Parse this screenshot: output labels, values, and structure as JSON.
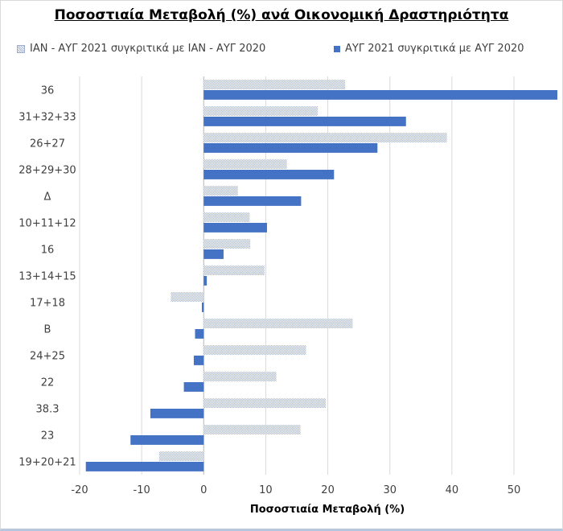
{
  "chart_data": {
    "type": "bar",
    "orientation": "horizontal",
    "title": "Ποσοστιαία Μεταβολή (%) ανά Οικονομική Δραστηριότητα",
    "xlabel": "Ποσοστιαία Μεταβολή (%)",
    "ylabel": "",
    "categories": [
      "36",
      "31+32+33",
      "26+27",
      "28+29+30",
      "Δ",
      "10+11+12",
      "16",
      "13+14+15",
      "17+18",
      "Β",
      "24+25",
      "22",
      "38.3",
      "23",
      "19+20+21"
    ],
    "xlim": [
      -20,
      57
    ],
    "xticks": [
      "-20",
      "-10",
      "0",
      "10",
      "20",
      "30",
      "40",
      "50"
    ],
    "grid": "vertical",
    "legend_position": "top",
    "series": [
      {
        "name": "ΙΑΝ - ΑΥΓ 2021 συγκριτικά με ΙΑΝ - ΑΥΓ 2020",
        "color": "#a9b7d2",
        "pattern": "dotted",
        "values": [
          22.8,
          18.4,
          39.2,
          13.4,
          5.5,
          7.4,
          7.5,
          9.8,
          -5.3,
          24.0,
          16.5,
          11.7,
          19.7,
          15.6,
          -7.2
        ]
      },
      {
        "name": "ΑΥΓ 2021 συγκριτικά με ΑΥΓ 2020",
        "color": "#4472c4",
        "pattern": "solid",
        "values": [
          57.0,
          32.6,
          28.0,
          21.0,
          15.7,
          10.2,
          3.2,
          0.5,
          -0.3,
          -1.4,
          -1.6,
          -3.2,
          -8.6,
          -11.8,
          -19.0
        ]
      }
    ]
  }
}
